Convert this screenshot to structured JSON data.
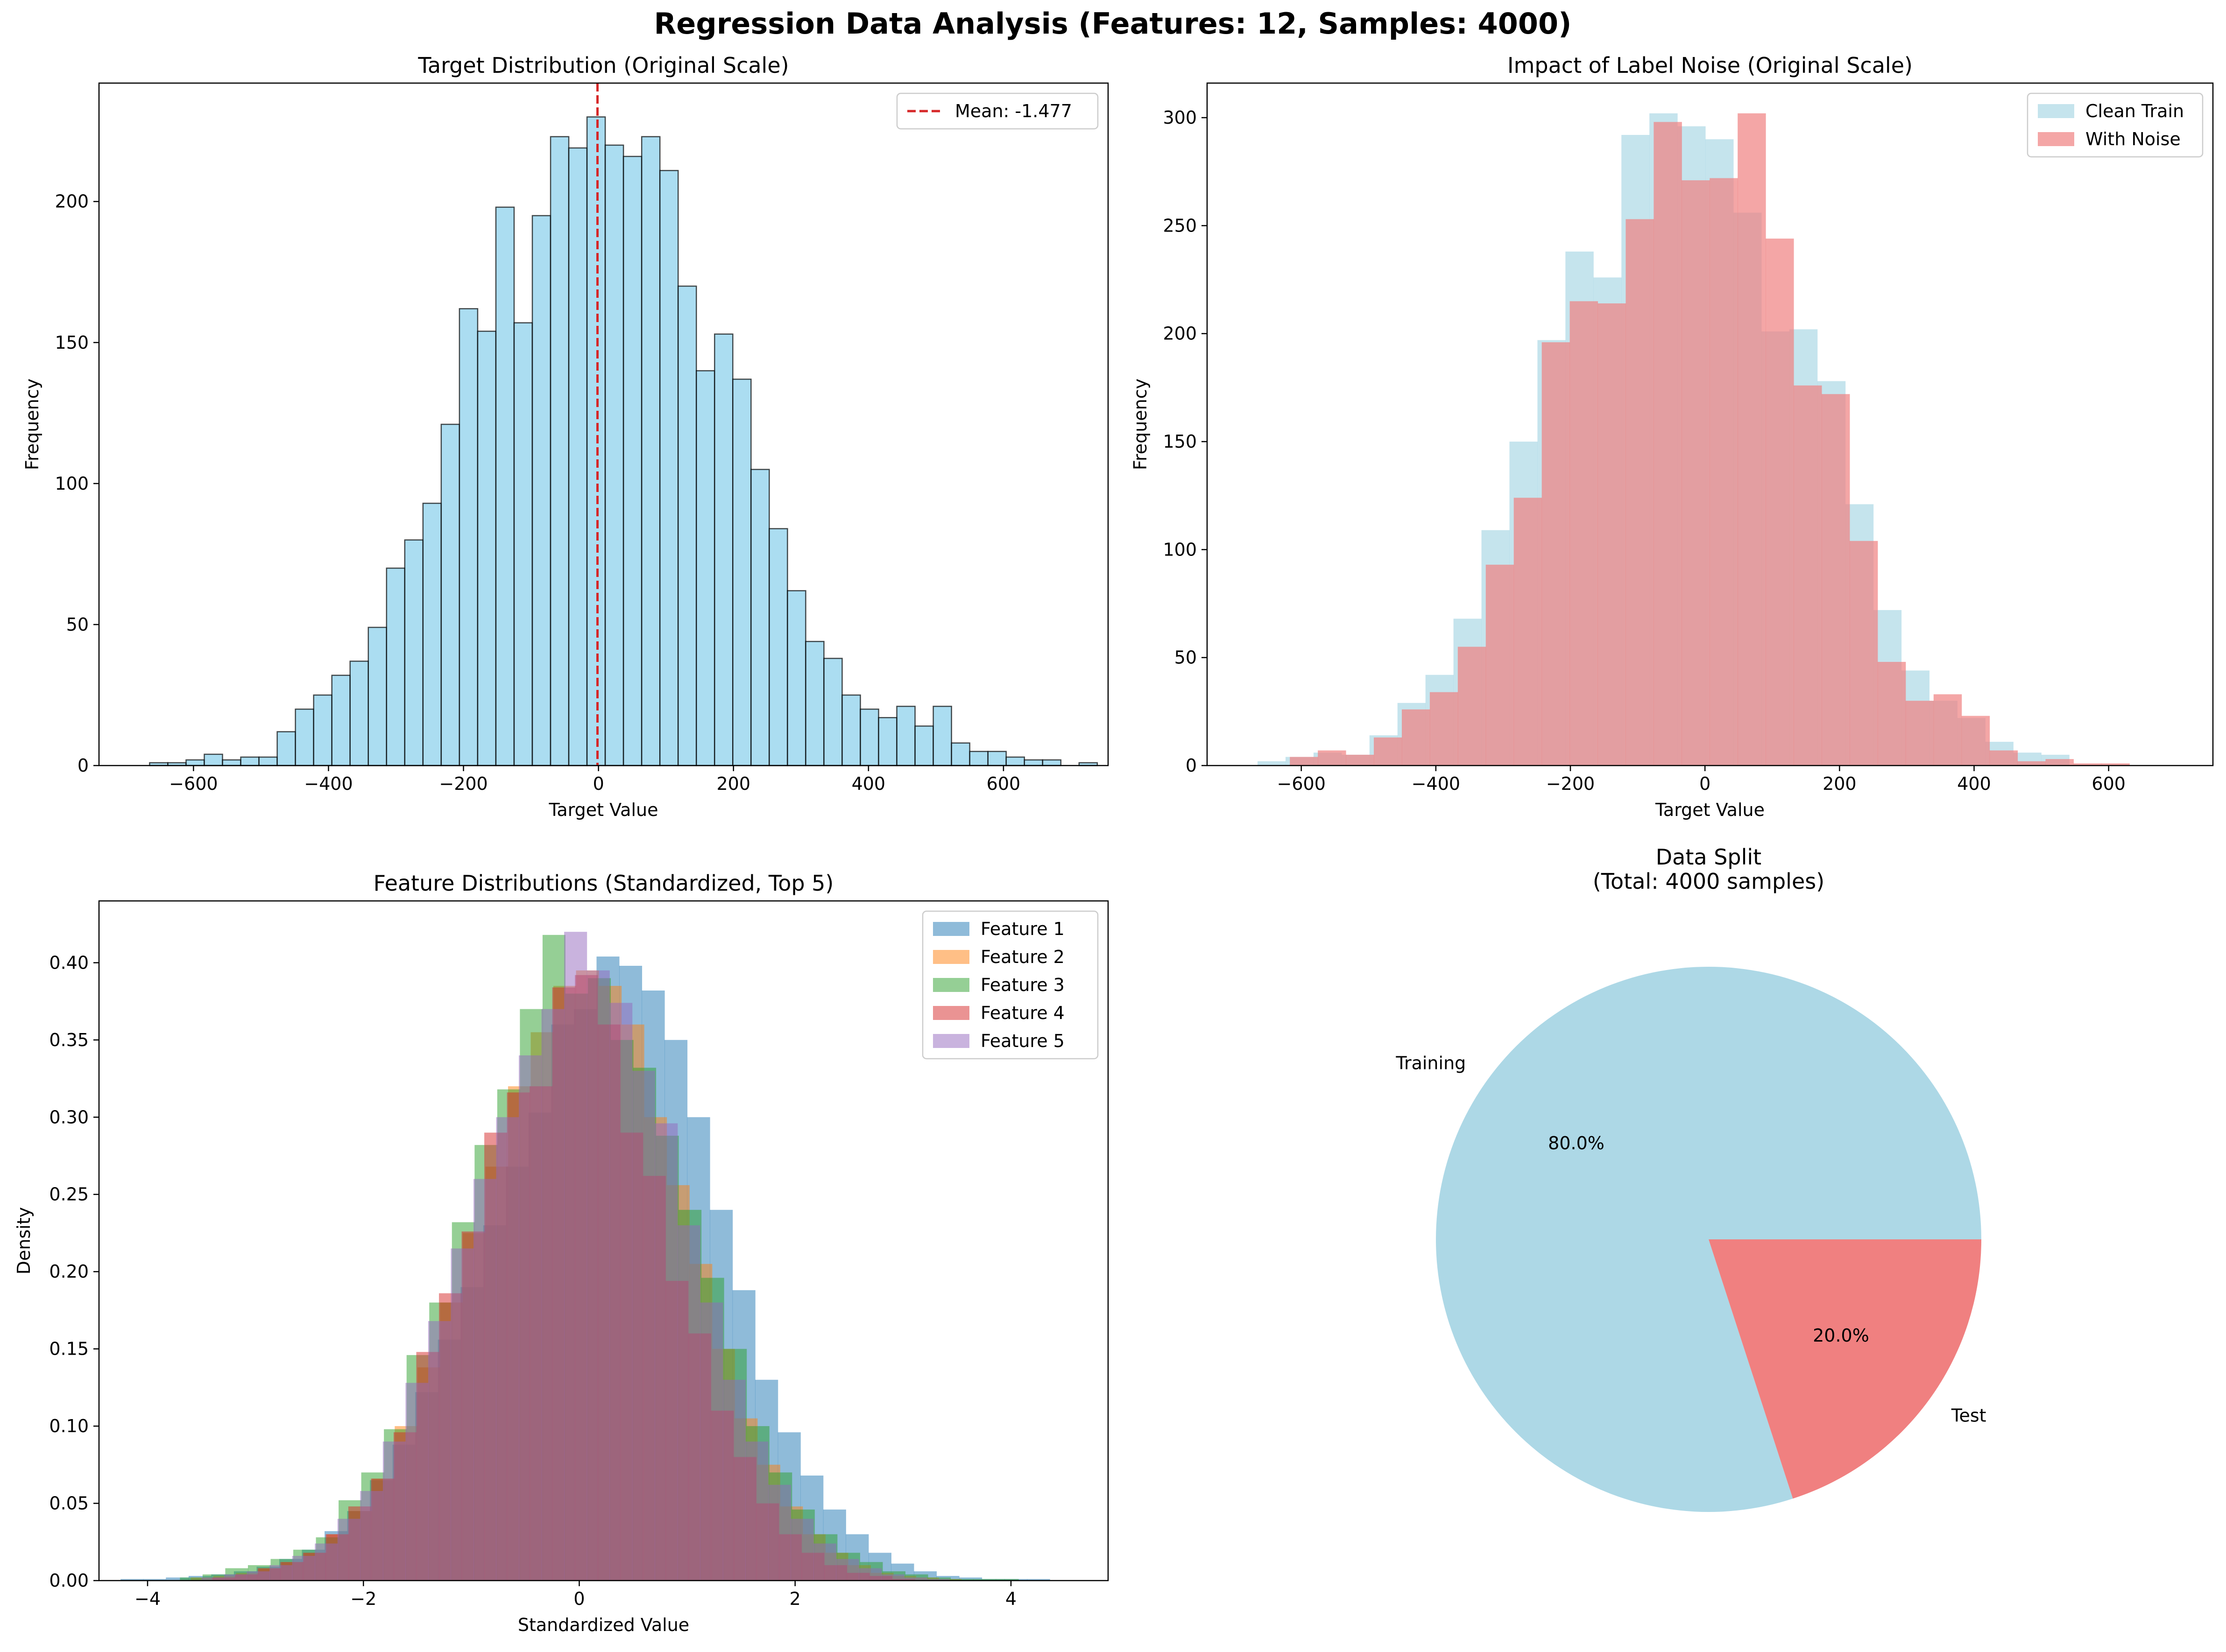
{
  "figure": {
    "suptitle": "Regression Data Analysis (Features: 12, Samples: 4000)"
  },
  "chart_data": [
    {
      "type": "bar",
      "title": "Target Distribution (Original Scale)",
      "xlabel": "Target Value",
      "ylabel": "Frequency",
      "xlim": [
        -740,
        755
      ],
      "ylim": [
        0,
        242
      ],
      "xticks": [
        -600,
        -400,
        -200,
        0,
        200,
        400,
        600
      ],
      "xtick_labels": [
        "−600",
        "−400",
        "−200",
        "0",
        "200",
        "400",
        "600"
      ],
      "yticks": [
        0,
        50,
        100,
        150,
        200
      ],
      "ytick_labels": [
        "0",
        "50",
        "100",
        "150",
        "200"
      ],
      "bin_start": -665,
      "bin_width": 27,
      "values": [
        1,
        1,
        2,
        4,
        2,
        3,
        3,
        12,
        20,
        25,
        32,
        37,
        49,
        70,
        80,
        93,
        121,
        162,
        154,
        198,
        157,
        195,
        223,
        219,
        230,
        220,
        216,
        223,
        211,
        170,
        140,
        153,
        137,
        105,
        84,
        62,
        44,
        38,
        25,
        20,
        17,
        21,
        14,
        21,
        8,
        5,
        5,
        3,
        2,
        2,
        0,
        1
      ],
      "series": [
        {
          "name": "",
          "color": "#87ceeb"
        }
      ],
      "mean_line": {
        "value": -1.477,
        "label": "Mean: -1.477",
        "color": "#d62728"
      },
      "legend": "top-right",
      "grid": false
    },
    {
      "type": "bar",
      "title": "Impact of Label Noise (Original Scale)",
      "xlabel": "Target Value",
      "ylabel": "Frequency",
      "xlim": [
        -740,
        755
      ],
      "ylim": [
        0,
        316
      ],
      "xticks": [
        -600,
        -400,
        -200,
        0,
        200,
        400,
        600
      ],
      "xtick_labels": [
        "−600",
        "−400",
        "−200",
        "0",
        "200",
        "400",
        "600"
      ],
      "yticks": [
        0,
        50,
        100,
        150,
        200,
        250,
        300
      ],
      "ytick_labels": [
        "0",
        "50",
        "100",
        "150",
        "200",
        "250",
        "300"
      ],
      "series": [
        {
          "name": "Clean Train",
          "color": "#add8e6",
          "bin_start": -665,
          "bin_width": 41.6,
          "values": [
            2,
            4,
            6,
            5,
            14,
            29,
            42,
            68,
            109,
            150,
            197,
            238,
            226,
            292,
            302,
            296,
            290,
            256,
            201,
            202,
            178,
            121,
            72,
            44,
            30,
            22,
            11,
            6,
            5,
            0
          ]
        },
        {
          "name": "With Noise",
          "color": "#f08080",
          "bin_start": -617,
          "bin_width": 41.6,
          "values": [
            4,
            7,
            5,
            13,
            26,
            34,
            55,
            93,
            124,
            196,
            215,
            214,
            253,
            298,
            271,
            272,
            302,
            244,
            176,
            172,
            104,
            48,
            30,
            33,
            23,
            7,
            2,
            3,
            1,
            1
          ]
        }
      ],
      "legend": "top-right",
      "grid": false
    },
    {
      "type": "bar",
      "title": "Feature Distributions (Standardized, Top 5)",
      "xlabel": "Standardized Value",
      "ylabel": "Density",
      "xlim": [
        -4.45,
        4.9
      ],
      "ylim": [
        0,
        0.44
      ],
      "xticks": [
        -4,
        -2,
        0,
        2,
        4
      ],
      "xtick_labels": [
        "−4",
        "−2",
        "0",
        "2",
        "4"
      ],
      "yticks": [
        0,
        0.05,
        0.1,
        0.15,
        0.2,
        0.25,
        0.3,
        0.35,
        0.4
      ],
      "ytick_labels": [
        "0.00",
        "0.05",
        "0.10",
        "0.15",
        "0.20",
        "0.25",
        "0.30",
        "0.35",
        "0.40"
      ],
      "series": [
        {
          "name": "Feature 1",
          "color": "#1f77b4",
          "bin_start": -4.25,
          "bin_width": 0.21,
          "values": [
            0.001,
            0.001,
            0.002,
            0.003,
            0.004,
            0.006,
            0.009,
            0.014,
            0.02,
            0.032,
            0.045,
            0.065,
            0.088,
            0.122,
            0.156,
            0.19,
            0.23,
            0.268,
            0.303,
            0.36,
            0.37,
            0.404,
            0.398,
            0.382,
            0.35,
            0.3,
            0.24,
            0.188,
            0.13,
            0.096,
            0.068,
            0.046,
            0.03,
            0.018,
            0.011,
            0.006,
            0.003,
            0.002,
            0.001,
            0.001,
            0.001
          ]
        },
        {
          "name": "Feature 2",
          "color": "#ff7f0e",
          "bin_start": -3.6,
          "bin_width": 0.21,
          "values": [
            0.002,
            0.003,
            0.005,
            0.008,
            0.012,
            0.018,
            0.03,
            0.045,
            0.066,
            0.1,
            0.138,
            0.18,
            0.225,
            0.268,
            0.32,
            0.355,
            0.385,
            0.395,
            0.385,
            0.36,
            0.3,
            0.256,
            0.205,
            0.15,
            0.105,
            0.075,
            0.048,
            0.03,
            0.018,
            0.01,
            0.005,
            0.003,
            0.002,
            0.001
          ]
        },
        {
          "name": "Feature 3",
          "color": "#2ca02c",
          "bin_start": -3.7,
          "bin_width": 0.21,
          "values": [
            0.002,
            0.004,
            0.008,
            0.01,
            0.014,
            0.02,
            0.028,
            0.052,
            0.07,
            0.098,
            0.146,
            0.18,
            0.232,
            0.282,
            0.318,
            0.37,
            0.418,
            0.38,
            0.39,
            0.35,
            0.332,
            0.288,
            0.24,
            0.196,
            0.15,
            0.1,
            0.07,
            0.046,
            0.03,
            0.018,
            0.012,
            0.006,
            0.004,
            0.002,
            0.001,
            0.001,
            0.001
          ]
        },
        {
          "name": "Feature 4",
          "color": "#d62728",
          "bin_start": -3.4,
          "bin_width": 0.21,
          "values": [
            0.002,
            0.004,
            0.008,
            0.012,
            0.018,
            0.03,
            0.048,
            0.066,
            0.096,
            0.148,
            0.186,
            0.226,
            0.29,
            0.316,
            0.32,
            0.384,
            0.392,
            0.36,
            0.29,
            0.262,
            0.194,
            0.16,
            0.11,
            0.08,
            0.05,
            0.03,
            0.018,
            0.01,
            0.005,
            0.003,
            0.001
          ]
        },
        {
          "name": "Feature 5",
          "color": "#9467bd",
          "bin_start": -3.5,
          "bin_width": 0.21,
          "values": [
            0.002,
            0.004,
            0.006,
            0.01,
            0.016,
            0.024,
            0.04,
            0.058,
            0.09,
            0.128,
            0.168,
            0.215,
            0.26,
            0.3,
            0.34,
            0.37,
            0.42,
            0.395,
            0.374,
            0.33,
            0.296,
            0.23,
            0.18,
            0.13,
            0.09,
            0.062,
            0.04,
            0.024,
            0.014,
            0.008,
            0.004,
            0.002,
            0.001
          ]
        }
      ],
      "legend": "top-right",
      "grid": false
    },
    {
      "type": "pie",
      "title": "Data Split\n(Total: 4000 samples)",
      "labels": [
        "Training",
        "Test"
      ],
      "values": [
        80.0,
        20.0
      ],
      "autopct": [
        "80.0%",
        "20.0%"
      ],
      "colors": [
        "#add8e6",
        "#f08080"
      ]
    }
  ]
}
